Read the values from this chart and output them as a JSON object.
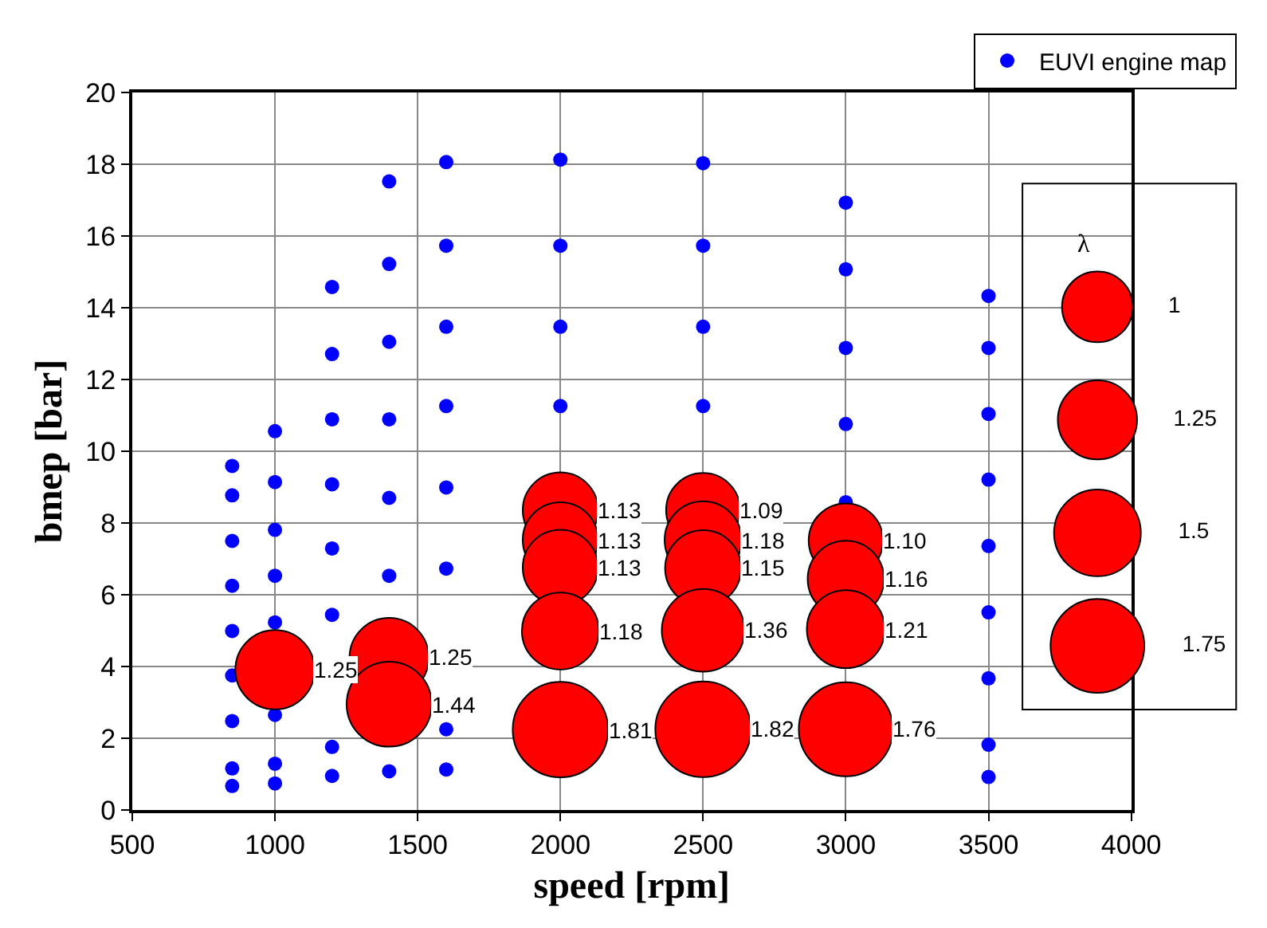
{
  "chart_data": {
    "type": "scatter",
    "xlabel": "speed [rpm]",
    "ylabel": "bmep [bar]",
    "xlim": [
      500,
      4000
    ],
    "xticks": [
      500,
      1000,
      1500,
      2000,
      2500,
      3000,
      3500,
      4000
    ],
    "ylim": [
      0,
      20
    ],
    "yticks": [
      0,
      2,
      4,
      6,
      8,
      10,
      12,
      14,
      16,
      18,
      20
    ],
    "grid": true,
    "legend": "top right",
    "marker": "circle",
    "legend_title": "λ",
    "size_legend": [
      1,
      1.25,
      1.5,
      1.75
    ],
    "series": [
      {
        "name": "EUVI engine map",
        "color": "#0000ff",
        "x": [
          850,
          850,
          850,
          850,
          850,
          850,
          850,
          850,
          850,
          1000,
          1000,
          1000,
          1000,
          1000,
          1000,
          1000,
          1000,
          1200,
          1200,
          1200,
          1200,
          1200,
          1200,
          1200,
          1200,
          1400,
          1400,
          1400,
          1400,
          1400,
          1400,
          1400,
          1600,
          1600,
          1600,
          1600,
          1600,
          1600,
          1600,
          1600,
          2000,
          2000,
          2000,
          2000,
          2500,
          2500,
          2500,
          2500,
          3000,
          3000,
          3000,
          3000,
          3000,
          3500,
          3500,
          3500,
          3500,
          3500,
          3500,
          3500,
          3500,
          3500
        ],
        "values": [
          9.59,
          8.77,
          7.5,
          6.25,
          4.99,
          3.75,
          2.48,
          1.16,
          0.67,
          10.56,
          9.14,
          7.81,
          6.53,
          5.23,
          2.65,
          1.29,
          0.74,
          14.58,
          12.71,
          10.89,
          9.08,
          7.29,
          5.44,
          1.76,
          0.95,
          17.52,
          15.22,
          13.05,
          10.89,
          8.7,
          6.53,
          1.08,
          18.06,
          15.73,
          13.47,
          11.26,
          8.99,
          6.73,
          2.25,
          1.13,
          18.13,
          15.73,
          13.47,
          11.26,
          18.03,
          15.73,
          13.47,
          11.26,
          16.93,
          15.07,
          12.88,
          10.76,
          8.58,
          14.33,
          12.88,
          11.04,
          9.21,
          7.36,
          5.51,
          3.67,
          1.82,
          0.92
        ]
      },
      {
        "type": "bubble",
        "color": "#ff0000",
        "value_labels": [
          "1.25",
          "1.25",
          "1.44",
          "1.13",
          "1.13",
          "1.13",
          "1.18",
          "1.81",
          "1.09",
          "1.18",
          "1.15",
          "1.36",
          "1.82",
          "1.10",
          "1.16",
          "1.21",
          "1.76"
        ],
        "x": [
          1000,
          1400,
          1400,
          2000,
          2000,
          2000,
          2000,
          2000,
          2500,
          2500,
          2500,
          2500,
          2500,
          3000,
          3000,
          3000,
          3000
        ],
        "values": [
          3.91,
          4.25,
          2.95,
          8.36,
          7.53,
          6.76,
          4.99,
          2.24,
          8.36,
          7.53,
          6.74,
          5.01,
          2.25,
          7.51,
          6.44,
          5.04,
          2.25
        ],
        "sizes": [
          1.25,
          1.25,
          1.44,
          1.13,
          1.13,
          1.13,
          1.18,
          1.81,
          1.09,
          1.18,
          1.15,
          1.36,
          1.82,
          1.1,
          1.16,
          1.21,
          1.76
        ]
      }
    ]
  }
}
